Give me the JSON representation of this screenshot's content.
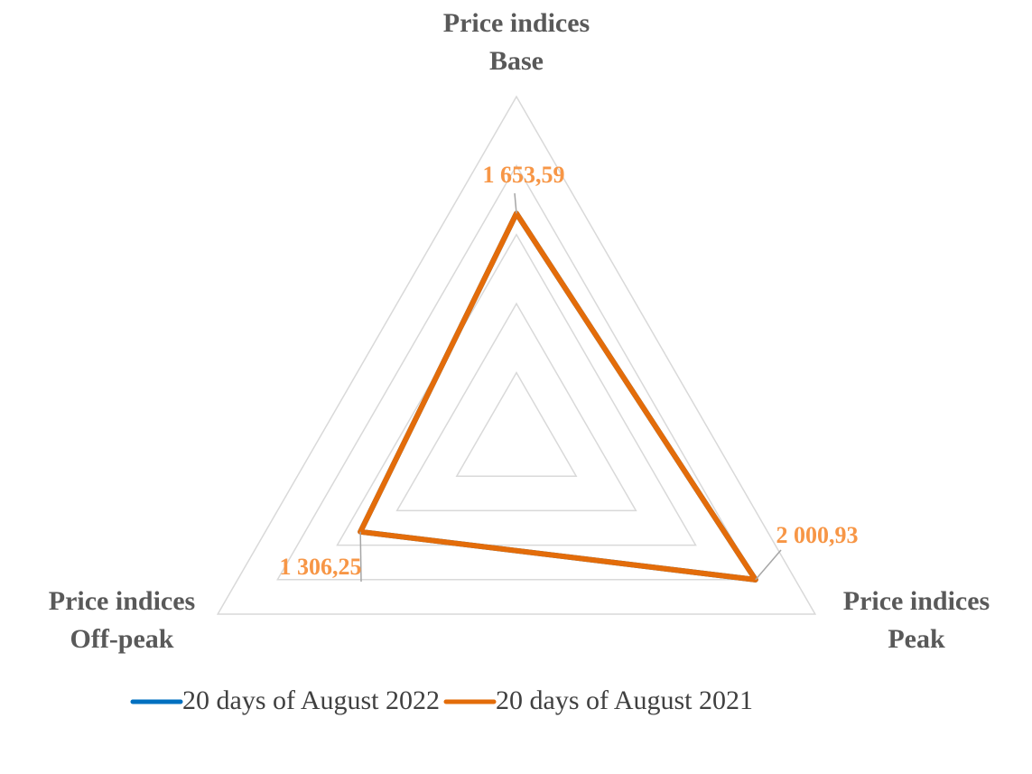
{
  "chart_data": {
    "type": "radar",
    "categories": [
      [
        "Price indices",
        "Base"
      ],
      [
        "Price indices",
        "Peak"
      ],
      [
        "Price indices",
        "Off-peak"
      ]
    ],
    "series": [
      {
        "name": "20 days of August 2022",
        "color": "#0070c0",
        "values": [
          1653.59,
          2000.93,
          1306.25
        ]
      },
      {
        "name": "20 days of August 2021",
        "color": "#e36c0a",
        "values": [
          1653.59,
          2000.93,
          1306.25
        ],
        "value_labels": [
          "1 653,59",
          "2 000,93",
          "1 306,25"
        ],
        "label_color": "#f79646"
      }
    ],
    "rlim": [
      0,
      2500
    ],
    "rticks": [
      500,
      1000,
      1500,
      2000,
      2500
    ],
    "grid": true,
    "legend": "bottom"
  }
}
